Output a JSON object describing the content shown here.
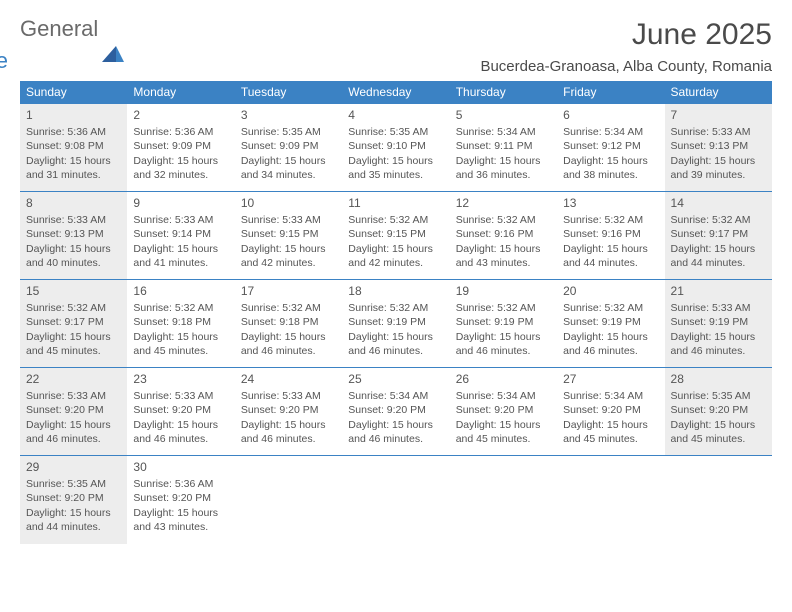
{
  "logo": {
    "general": "General",
    "blue": "Blue"
  },
  "title": "June 2025",
  "location": "Bucerdea-Granoasa, Alba County, Romania",
  "colors": {
    "header_bg": "#3b82c4",
    "header_fg": "#ffffff",
    "shaded_bg": "#ededed",
    "border": "#3b82c4",
    "text": "#555555",
    "title_color": "#4a4a4a"
  },
  "day_headers": [
    "Sunday",
    "Monday",
    "Tuesday",
    "Wednesday",
    "Thursday",
    "Friday",
    "Saturday"
  ],
  "weeks": [
    [
      {
        "n": "1",
        "shaded": true,
        "sunrise": "Sunrise: 5:36 AM",
        "sunset": "Sunset: 9:08 PM",
        "daylight": "Daylight: 15 hours and 31 minutes."
      },
      {
        "n": "2",
        "shaded": false,
        "sunrise": "Sunrise: 5:36 AM",
        "sunset": "Sunset: 9:09 PM",
        "daylight": "Daylight: 15 hours and 32 minutes."
      },
      {
        "n": "3",
        "shaded": false,
        "sunrise": "Sunrise: 5:35 AM",
        "sunset": "Sunset: 9:09 PM",
        "daylight": "Daylight: 15 hours and 34 minutes."
      },
      {
        "n": "4",
        "shaded": false,
        "sunrise": "Sunrise: 5:35 AM",
        "sunset": "Sunset: 9:10 PM",
        "daylight": "Daylight: 15 hours and 35 minutes."
      },
      {
        "n": "5",
        "shaded": false,
        "sunrise": "Sunrise: 5:34 AM",
        "sunset": "Sunset: 9:11 PM",
        "daylight": "Daylight: 15 hours and 36 minutes."
      },
      {
        "n": "6",
        "shaded": false,
        "sunrise": "Sunrise: 5:34 AM",
        "sunset": "Sunset: 9:12 PM",
        "daylight": "Daylight: 15 hours and 38 minutes."
      },
      {
        "n": "7",
        "shaded": true,
        "sunrise": "Sunrise: 5:33 AM",
        "sunset": "Sunset: 9:13 PM",
        "daylight": "Daylight: 15 hours and 39 minutes."
      }
    ],
    [
      {
        "n": "8",
        "shaded": true,
        "sunrise": "Sunrise: 5:33 AM",
        "sunset": "Sunset: 9:13 PM",
        "daylight": "Daylight: 15 hours and 40 minutes."
      },
      {
        "n": "9",
        "shaded": false,
        "sunrise": "Sunrise: 5:33 AM",
        "sunset": "Sunset: 9:14 PM",
        "daylight": "Daylight: 15 hours and 41 minutes."
      },
      {
        "n": "10",
        "shaded": false,
        "sunrise": "Sunrise: 5:33 AM",
        "sunset": "Sunset: 9:15 PM",
        "daylight": "Daylight: 15 hours and 42 minutes."
      },
      {
        "n": "11",
        "shaded": false,
        "sunrise": "Sunrise: 5:32 AM",
        "sunset": "Sunset: 9:15 PM",
        "daylight": "Daylight: 15 hours and 42 minutes."
      },
      {
        "n": "12",
        "shaded": false,
        "sunrise": "Sunrise: 5:32 AM",
        "sunset": "Sunset: 9:16 PM",
        "daylight": "Daylight: 15 hours and 43 minutes."
      },
      {
        "n": "13",
        "shaded": false,
        "sunrise": "Sunrise: 5:32 AM",
        "sunset": "Sunset: 9:16 PM",
        "daylight": "Daylight: 15 hours and 44 minutes."
      },
      {
        "n": "14",
        "shaded": true,
        "sunrise": "Sunrise: 5:32 AM",
        "sunset": "Sunset: 9:17 PM",
        "daylight": "Daylight: 15 hours and 44 minutes."
      }
    ],
    [
      {
        "n": "15",
        "shaded": true,
        "sunrise": "Sunrise: 5:32 AM",
        "sunset": "Sunset: 9:17 PM",
        "daylight": "Daylight: 15 hours and 45 minutes."
      },
      {
        "n": "16",
        "shaded": false,
        "sunrise": "Sunrise: 5:32 AM",
        "sunset": "Sunset: 9:18 PM",
        "daylight": "Daylight: 15 hours and 45 minutes."
      },
      {
        "n": "17",
        "shaded": false,
        "sunrise": "Sunrise: 5:32 AM",
        "sunset": "Sunset: 9:18 PM",
        "daylight": "Daylight: 15 hours and 46 minutes."
      },
      {
        "n": "18",
        "shaded": false,
        "sunrise": "Sunrise: 5:32 AM",
        "sunset": "Sunset: 9:19 PM",
        "daylight": "Daylight: 15 hours and 46 minutes."
      },
      {
        "n": "19",
        "shaded": false,
        "sunrise": "Sunrise: 5:32 AM",
        "sunset": "Sunset: 9:19 PM",
        "daylight": "Daylight: 15 hours and 46 minutes."
      },
      {
        "n": "20",
        "shaded": false,
        "sunrise": "Sunrise: 5:32 AM",
        "sunset": "Sunset: 9:19 PM",
        "daylight": "Daylight: 15 hours and 46 minutes."
      },
      {
        "n": "21",
        "shaded": true,
        "sunrise": "Sunrise: 5:33 AM",
        "sunset": "Sunset: 9:19 PM",
        "daylight": "Daylight: 15 hours and 46 minutes."
      }
    ],
    [
      {
        "n": "22",
        "shaded": true,
        "sunrise": "Sunrise: 5:33 AM",
        "sunset": "Sunset: 9:20 PM",
        "daylight": "Daylight: 15 hours and 46 minutes."
      },
      {
        "n": "23",
        "shaded": false,
        "sunrise": "Sunrise: 5:33 AM",
        "sunset": "Sunset: 9:20 PM",
        "daylight": "Daylight: 15 hours and 46 minutes."
      },
      {
        "n": "24",
        "shaded": false,
        "sunrise": "Sunrise: 5:33 AM",
        "sunset": "Sunset: 9:20 PM",
        "daylight": "Daylight: 15 hours and 46 minutes."
      },
      {
        "n": "25",
        "shaded": false,
        "sunrise": "Sunrise: 5:34 AM",
        "sunset": "Sunset: 9:20 PM",
        "daylight": "Daylight: 15 hours and 46 minutes."
      },
      {
        "n": "26",
        "shaded": false,
        "sunrise": "Sunrise: 5:34 AM",
        "sunset": "Sunset: 9:20 PM",
        "daylight": "Daylight: 15 hours and 45 minutes."
      },
      {
        "n": "27",
        "shaded": false,
        "sunrise": "Sunrise: 5:34 AM",
        "sunset": "Sunset: 9:20 PM",
        "daylight": "Daylight: 15 hours and 45 minutes."
      },
      {
        "n": "28",
        "shaded": true,
        "sunrise": "Sunrise: 5:35 AM",
        "sunset": "Sunset: 9:20 PM",
        "daylight": "Daylight: 15 hours and 45 minutes."
      }
    ],
    [
      {
        "n": "29",
        "shaded": true,
        "sunrise": "Sunrise: 5:35 AM",
        "sunset": "Sunset: 9:20 PM",
        "daylight": "Daylight: 15 hours and 44 minutes."
      },
      {
        "n": "30",
        "shaded": false,
        "sunrise": "Sunrise: 5:36 AM",
        "sunset": "Sunset: 9:20 PM",
        "daylight": "Daylight: 15 hours and 43 minutes."
      },
      null,
      null,
      null,
      null,
      null
    ]
  ]
}
